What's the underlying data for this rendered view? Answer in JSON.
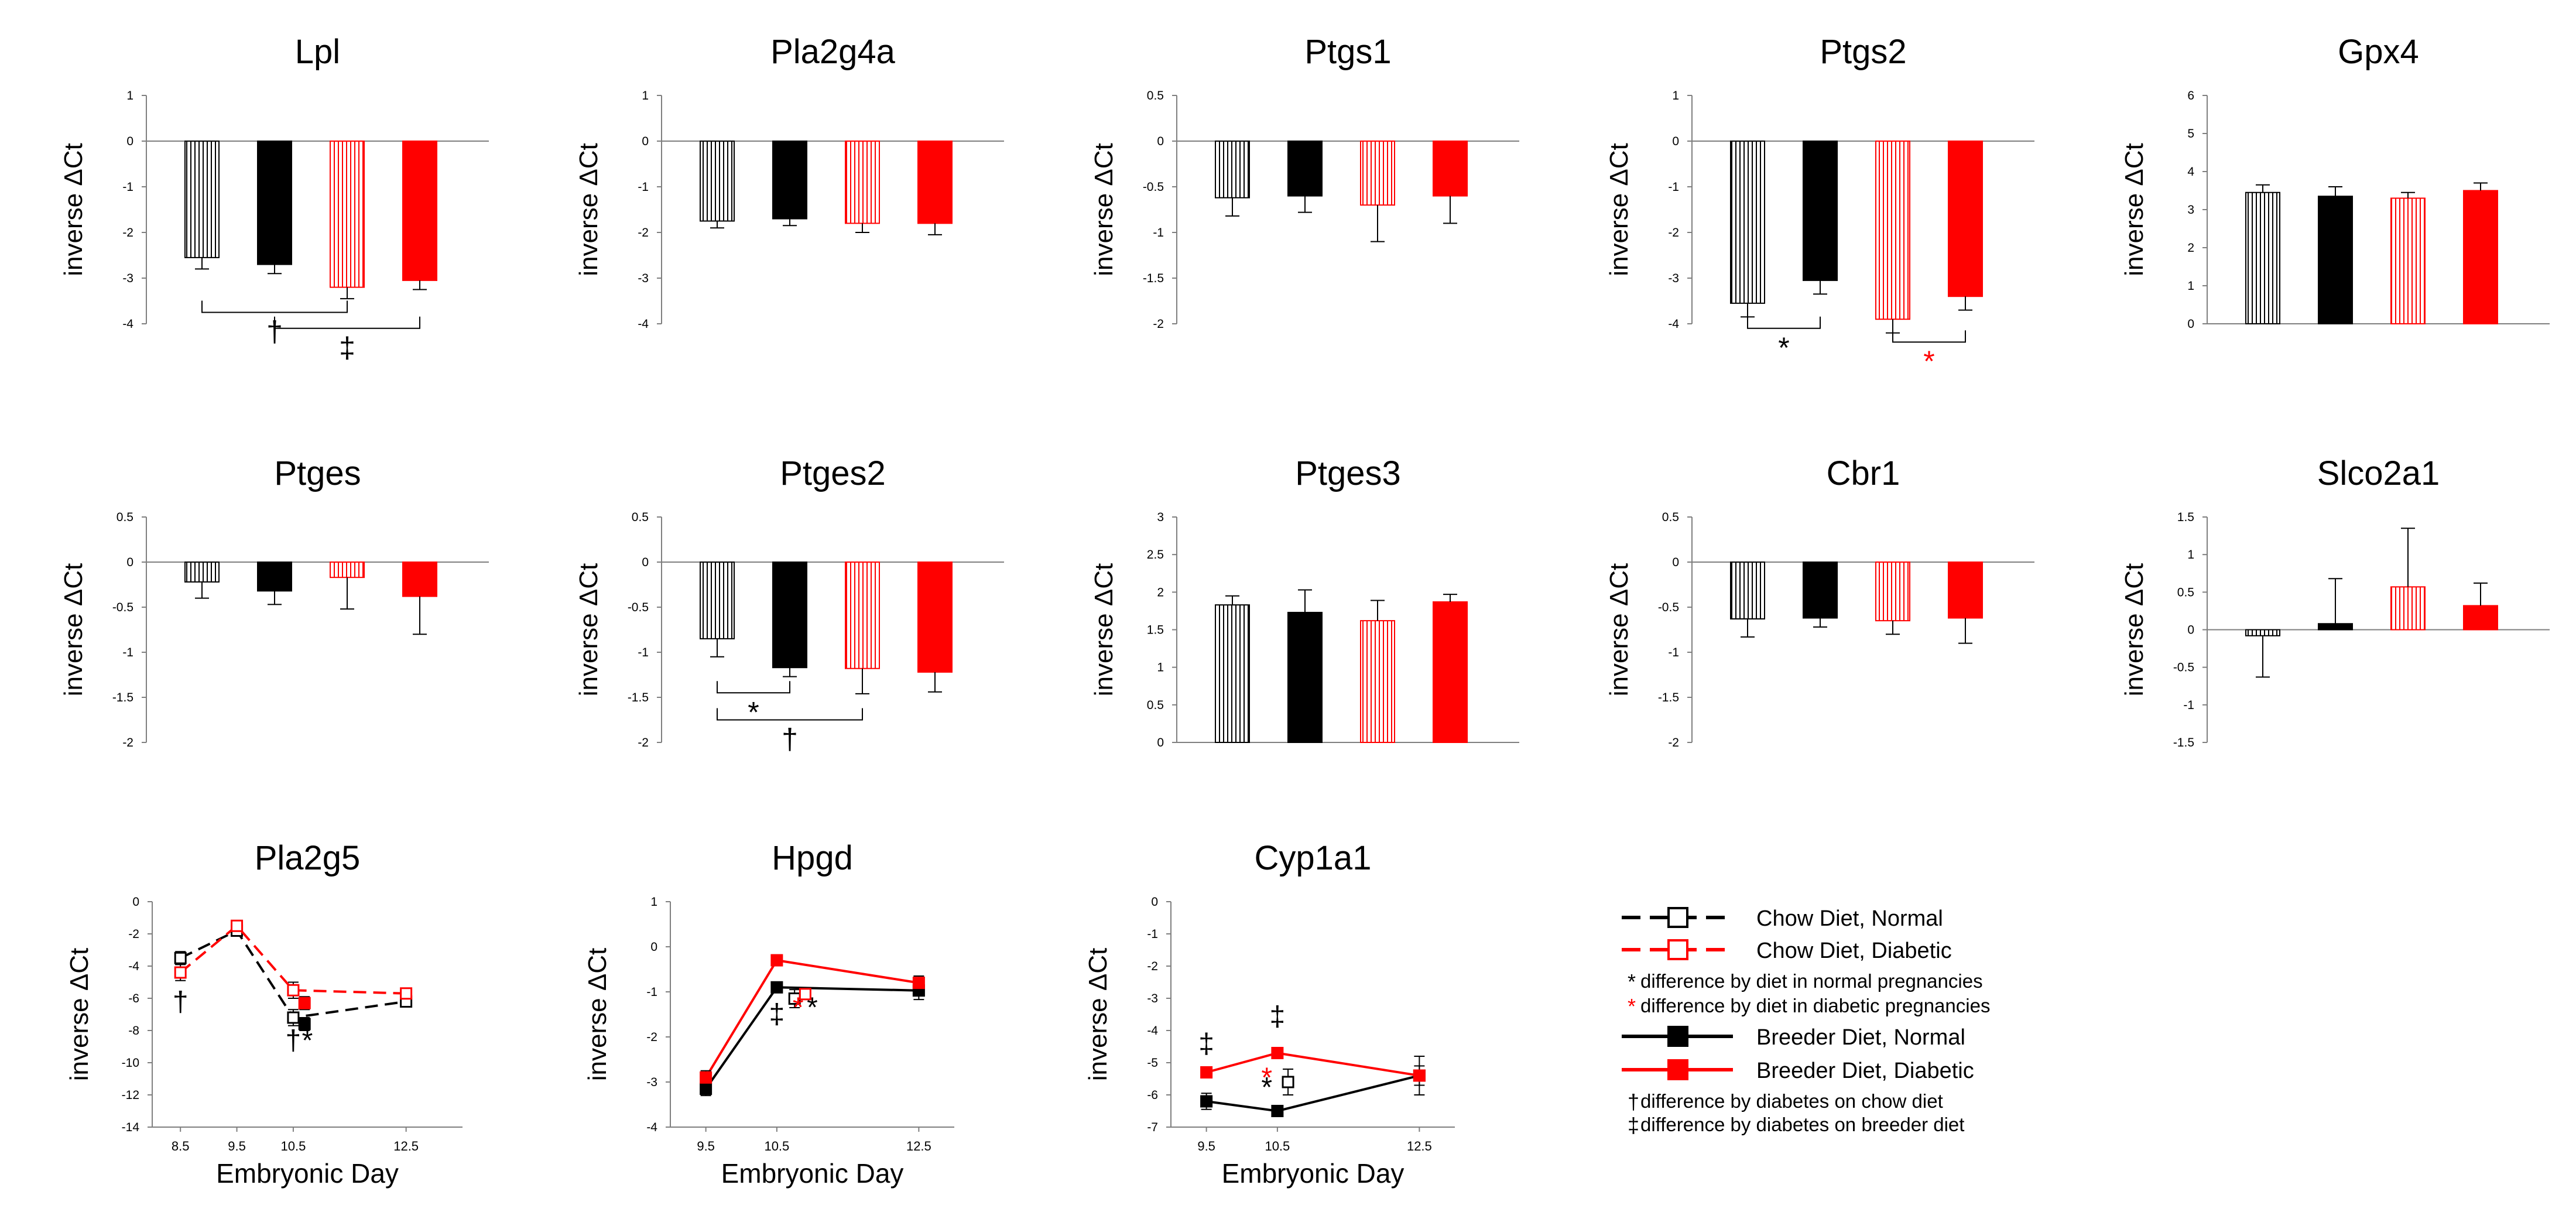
{
  "colors": {
    "black": "#000000",
    "red": "#ff0000",
    "axis": "#7f7f7f"
  },
  "common": {
    "ylabel": "inverse ΔCt",
    "xlabel": "Embryonic Day"
  },
  "chart_data": [
    {
      "type": "bar",
      "title": "Lpl",
      "ylim": [
        -4,
        1
      ],
      "yticks": [
        "1",
        "0",
        "-1",
        "-2",
        "-3",
        "-4"
      ],
      "groups": [
        "Chow Diet, Normal",
        "Breeder Diet, Normal",
        "Chow Diet, Diabetic",
        "Breeder Diet, Diabetic"
      ],
      "values": [
        -2.55,
        -2.7,
        -3.2,
        -3.05
      ],
      "errors": [
        0.25,
        0.2,
        0.25,
        0.2
      ],
      "annotations": [
        {
          "from": 0,
          "to": 2,
          "level": -3.75,
          "label": "†",
          "color": "black"
        },
        {
          "from": 1,
          "to": 3,
          "level": -4.1,
          "label": "‡",
          "color": "black"
        }
      ]
    },
    {
      "type": "bar",
      "title": "Pla2g4a",
      "ylim": [
        -4,
        1
      ],
      "yticks": [
        "1",
        "0",
        "-1",
        "-2",
        "-3",
        "-4"
      ],
      "groups": [
        "Chow Diet, Normal",
        "Breeder Diet, Normal",
        "Chow Diet, Diabetic",
        "Breeder Diet, Diabetic"
      ],
      "values": [
        -1.75,
        -1.7,
        -1.8,
        -1.8
      ],
      "errors": [
        0.15,
        0.15,
        0.2,
        0.25
      ],
      "annotations": []
    },
    {
      "type": "bar",
      "title": "Ptgs1",
      "ylim": [
        -2,
        0.5
      ],
      "yticks": [
        "0.5",
        "0",
        "-0.5",
        "-1",
        "-1.5",
        "-2"
      ],
      "groups": [
        "Chow Diet, Normal",
        "Breeder Diet, Normal",
        "Chow Diet, Diabetic",
        "Breeder Diet, Diabetic"
      ],
      "values": [
        -0.62,
        -0.6,
        -0.7,
        -0.6
      ],
      "errors": [
        0.2,
        0.18,
        0.4,
        0.3
      ],
      "annotations": []
    },
    {
      "type": "bar",
      "title": "Ptgs2",
      "ylim": [
        -4,
        1
      ],
      "yticks": [
        "1",
        "0",
        "-1",
        "-2",
        "-3",
        "-4"
      ],
      "groups": [
        "Chow Diet, Normal",
        "Breeder Diet, Normal",
        "Chow Diet, Diabetic",
        "Breeder Diet, Diabetic"
      ],
      "values": [
        -3.55,
        -3.05,
        -3.9,
        -3.4
      ],
      "errors": [
        0.3,
        0.3,
        0.3,
        0.3
      ],
      "annotations": [
        {
          "from": 0,
          "to": 1,
          "level": -4.1,
          "label": "*",
          "color": "black"
        },
        {
          "from": 2,
          "to": 3,
          "level": -4.4,
          "label": "*",
          "color": "red"
        }
      ]
    },
    {
      "type": "bar",
      "title": "Gpx4",
      "ylim": [
        0,
        6
      ],
      "yticks": [
        "6",
        "5",
        "4",
        "3",
        "2",
        "1",
        "0"
      ],
      "groups": [
        "Chow Diet, Normal",
        "Breeder Diet, Normal",
        "Chow Diet, Diabetic",
        "Breeder Diet, Diabetic"
      ],
      "values": [
        3.45,
        3.35,
        3.3,
        3.5
      ],
      "errors": [
        0.2,
        0.25,
        0.15,
        0.2
      ],
      "annotations": []
    },
    {
      "type": "bar",
      "title": "Ptges",
      "ylim": [
        -2,
        0.5
      ],
      "yticks": [
        "0.5",
        "0",
        "-0.5",
        "-1",
        "-1.5",
        "-2"
      ],
      "groups": [
        "Chow Diet, Normal",
        "Breeder Diet, Normal",
        "Chow Diet, Diabetic",
        "Breeder Diet, Diabetic"
      ],
      "values": [
        -0.22,
        -0.32,
        -0.17,
        -0.38
      ],
      "errors": [
        0.18,
        0.15,
        0.35,
        0.42
      ],
      "annotations": []
    },
    {
      "type": "bar",
      "title": "Ptges2",
      "ylim": [
        -2,
        0.5
      ],
      "yticks": [
        "0.5",
        "0",
        "-0.5",
        "-1",
        "-1.5",
        "-2"
      ],
      "groups": [
        "Chow Diet, Normal",
        "Breeder Diet, Normal",
        "Chow Diet, Diabetic",
        "Breeder Diet, Diabetic"
      ],
      "values": [
        -0.85,
        -1.17,
        -1.18,
        -1.22
      ],
      "errors": [
        0.2,
        0.1,
        0.28,
        0.22
      ],
      "annotations": [
        {
          "from": 0,
          "to": 1,
          "level": -1.45,
          "label": "*",
          "color": "black"
        },
        {
          "from": 0,
          "to": 2,
          "level": -1.75,
          "label": "†",
          "color": "black"
        }
      ]
    },
    {
      "type": "bar",
      "title": "Ptges3",
      "ylim": [
        0,
        3
      ],
      "yticks": [
        "3",
        "2.5",
        "2",
        "1.5",
        "1",
        "0.5",
        "0"
      ],
      "groups": [
        "Chow Diet, Normal",
        "Breeder Diet, Normal",
        "Chow Diet, Diabetic",
        "Breeder Diet, Diabetic"
      ],
      "values": [
        1.83,
        1.73,
        1.62,
        1.87
      ],
      "errors": [
        0.12,
        0.3,
        0.27,
        0.1
      ],
      "annotations": []
    },
    {
      "type": "bar",
      "title": "Cbr1",
      "ylim": [
        -2,
        0.5
      ],
      "yticks": [
        "0.5",
        "0",
        "-0.5",
        "-1",
        "-1.5",
        "-2"
      ],
      "groups": [
        "Chow Diet, Normal",
        "Breeder Diet, Normal",
        "Chow Diet, Diabetic",
        "Breeder Diet, Diabetic"
      ],
      "values": [
        -0.63,
        -0.62,
        -0.65,
        -0.62
      ],
      "errors": [
        0.2,
        0.1,
        0.15,
        0.28
      ],
      "annotations": []
    },
    {
      "type": "bar",
      "title": "Slco2a1",
      "ylim": [
        -1.5,
        1.5
      ],
      "yticks": [
        "1.5",
        "1",
        "0.5",
        "0",
        "-0.5",
        "-1",
        "-1.5"
      ],
      "groups": [
        "Chow Diet, Normal",
        "Breeder Diet, Normal",
        "Chow Diet, Diabetic",
        "Breeder Diet, Diabetic"
      ],
      "values": [
        -0.08,
        0.08,
        0.57,
        0.32
      ],
      "errors": [
        0.55,
        0.6,
        0.78,
        0.3
      ],
      "annotations": []
    },
    {
      "type": "line",
      "title": "Pla2g5",
      "ylim": [
        -14,
        0
      ],
      "yticks": [
        "0",
        "-2",
        "-4",
        "-6",
        "-8",
        "-10",
        "-12",
        "-14"
      ],
      "xlim": [
        8,
        13.5
      ],
      "xticks": [
        "8.5",
        "9.5",
        "10.5",
        "12.5"
      ],
      "series": [
        {
          "name": "Chow Diet, Normal",
          "x": [
            8.5,
            9.5,
            10.5,
            12.5
          ],
          "y": [
            -3.5,
            -1.8,
            -7.2,
            -6.2
          ],
          "err": [
            0.4,
            0.3,
            0.5,
            0.3
          ]
        },
        {
          "name": "Chow Diet, Diabetic",
          "x": [
            8.5,
            9.5,
            10.5,
            12.5
          ],
          "y": [
            -4.4,
            -1.5,
            -5.5,
            -5.7
          ],
          "err": [
            0.5,
            0.3,
            0.5,
            0.3
          ]
        },
        {
          "name": "Breeder Diet, Normal",
          "x": [
            10.7
          ],
          "y": [
            -7.6
          ],
          "err": [
            0.4
          ]
        },
        {
          "name": "Breeder Diet, Diabetic",
          "x": [
            10.7
          ],
          "y": [
            -6.3
          ],
          "err": [
            0.4
          ]
        }
      ],
      "annotations": [
        {
          "x": 8.5,
          "y": -6.8,
          "label": "†",
          "color": "black"
        },
        {
          "x": 10.5,
          "y": -9.2,
          "label": "†",
          "color": "black"
        },
        {
          "x": 10.75,
          "y": -9.2,
          "label": "*",
          "color": "black"
        }
      ]
    },
    {
      "type": "line",
      "title": "Hpgd",
      "ylim": [
        -4,
        1
      ],
      "yticks": [
        "1",
        "0",
        "-1",
        "-2",
        "-3",
        "-4"
      ],
      "xlim": [
        9,
        13
      ],
      "xticks": [
        "9.5",
        "10.5",
        "12.5"
      ],
      "series": [
        {
          "name": "Breeder Diet, Normal",
          "x": [
            9.5,
            10.5,
            12.5
          ],
          "y": [
            -3.15,
            -0.9,
            -0.97
          ],
          "err": [
            0.15,
            0.12,
            0.2
          ]
        },
        {
          "name": "Breeder Diet, Diabetic",
          "x": [
            9.5,
            10.5,
            12.5
          ],
          "y": [
            -2.9,
            -0.3,
            -0.8
          ],
          "err": [
            0.15,
            0.12,
            0.15
          ]
        },
        {
          "name": "Chow Diet, Normal",
          "x": [
            10.75
          ],
          "y": [
            -1.15
          ],
          "err": [
            0.2
          ]
        },
        {
          "name": "Chow Diet, Diabetic",
          "x": [
            10.9
          ],
          "y": [
            -1.05
          ],
          "err": [
            0.1
          ]
        }
      ],
      "annotations": [
        {
          "x": 10.5,
          "y": -1.7,
          "label": "‡",
          "color": "black"
        },
        {
          "x": 10.8,
          "y": -1.55,
          "label": "*",
          "color": "red"
        },
        {
          "x": 11.0,
          "y": -1.55,
          "label": "*",
          "color": "black"
        }
      ]
    },
    {
      "type": "line",
      "title": "Cyp1a1",
      "ylim": [
        -7,
        0
      ],
      "yticks": [
        "0",
        "-1",
        "-2",
        "-3",
        "-4",
        "-5",
        "-6",
        "-7"
      ],
      "xlim": [
        9,
        13
      ],
      "xticks": [
        "9.5",
        "10.5",
        "12.5"
      ],
      "series": [
        {
          "name": "Breeder Diet, Normal",
          "x": [
            9.5,
            10.5,
            12.5
          ],
          "y": [
            -6.2,
            -6.5,
            -5.4
          ],
          "err": [
            0.25,
            0.1,
            0.6
          ]
        },
        {
          "name": "Breeder Diet, Diabetic",
          "x": [
            9.5,
            10.5,
            12.5
          ],
          "y": [
            -5.3,
            -4.7,
            -5.4
          ],
          "err": [
            0.15,
            0.15,
            0.3
          ]
        },
        {
          "name": "Chow Diet, Normal",
          "x": [
            10.65
          ],
          "y": [
            -5.6
          ],
          "err": [
            0.4
          ]
        }
      ],
      "annotations": [
        {
          "x": 9.5,
          "y": -4.7,
          "label": "‡",
          "color": "black"
        },
        {
          "x": 10.5,
          "y": -3.85,
          "label": "‡",
          "color": "black"
        },
        {
          "x": 10.35,
          "y": -5.75,
          "label": "*",
          "color": "red"
        },
        {
          "x": 10.35,
          "y": -6.05,
          "label": "*",
          "color": "black"
        }
      ]
    }
  ],
  "legend": {
    "entries": [
      {
        "kind": "line",
        "label": "Chow Diet, Normal",
        "color": "black",
        "dashed": true,
        "filled": false
      },
      {
        "kind": "line",
        "label": "Chow Diet, Diabetic",
        "color": "red",
        "dashed": true,
        "filled": false
      },
      {
        "kind": "note",
        "symbol": "*",
        "symbol_color": "black",
        "label": "difference by diet in normal pregnancies"
      },
      {
        "kind": "note",
        "symbol": "*",
        "symbol_color": "red",
        "label": "difference by diet in diabetic pregnancies"
      },
      {
        "kind": "line",
        "label": "Breeder Diet, Normal",
        "color": "black",
        "dashed": false,
        "filled": true
      },
      {
        "kind": "line",
        "label": "Breeder Diet, Diabetic",
        "color": "red",
        "dashed": false,
        "filled": true
      },
      {
        "kind": "note",
        "symbol": "†",
        "symbol_color": "black",
        "label": "difference by diabetes on chow diet"
      },
      {
        "kind": "note",
        "symbol": "‡",
        "symbol_color": "black",
        "label": "difference by diabetes on breeder diet"
      }
    ]
  }
}
